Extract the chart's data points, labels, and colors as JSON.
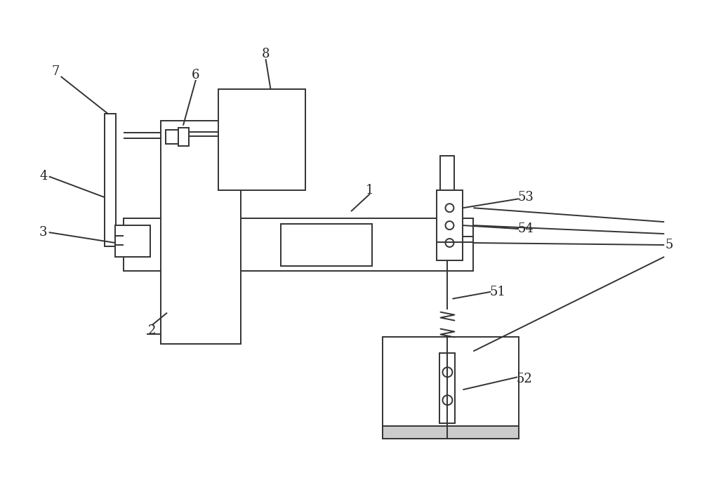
{
  "bg_color": "#ffffff",
  "line_color": "#333333",
  "lw": 1.4,
  "fig_width": 10.0,
  "fig_height": 7.01,
  "label_fs": 13,
  "label_color": "#222222"
}
